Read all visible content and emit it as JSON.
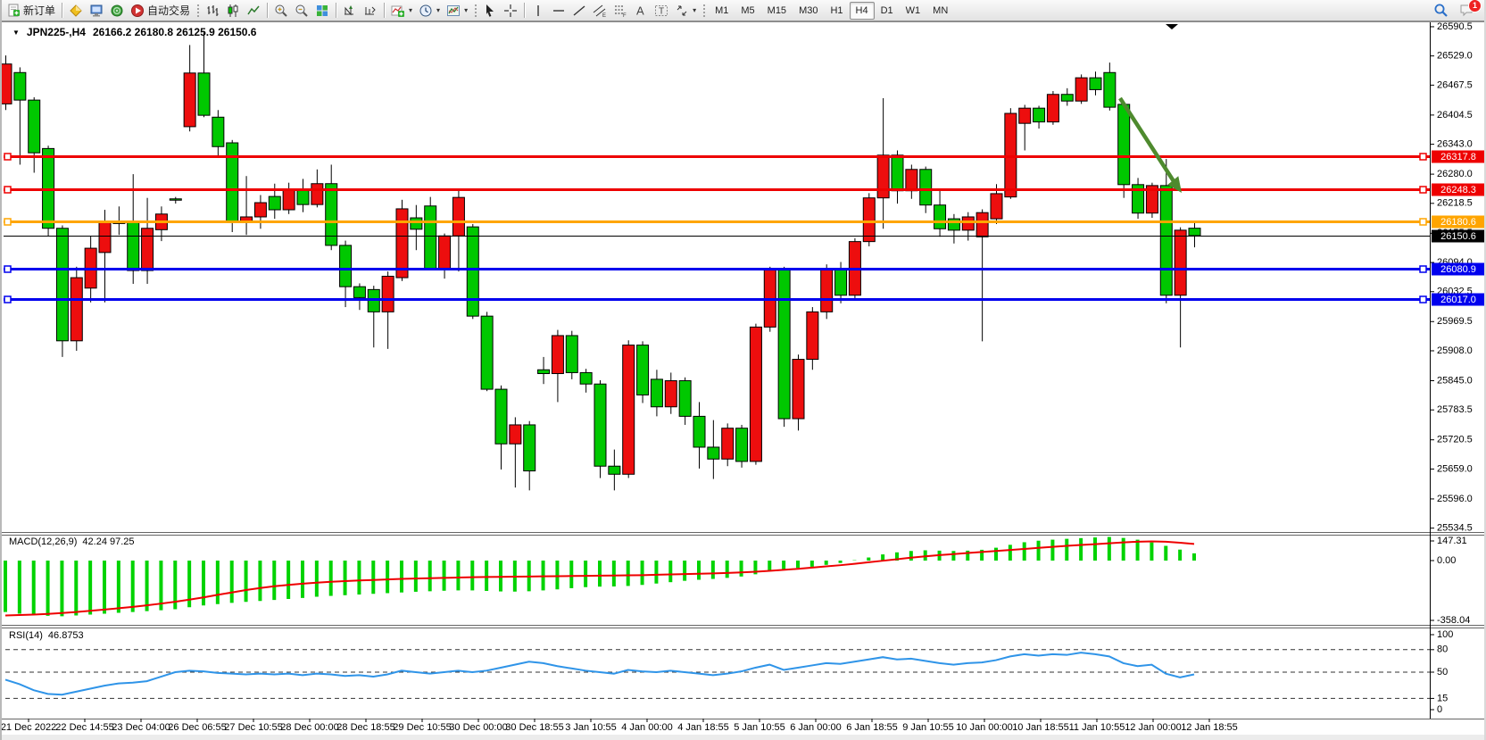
{
  "toolbar": {
    "new_order_label": "新订单",
    "autotrade_label": "自动交易",
    "timeframes": [
      "M1",
      "M5",
      "M15",
      "M30",
      "H1",
      "H4",
      "D1",
      "W1",
      "MN"
    ],
    "active_timeframe": "H4",
    "notification_count": "1",
    "icon_names": [
      "new-order",
      "market-watch",
      "data-window",
      "navigator",
      "autotrading",
      "bar-chart",
      "candlestick-chart",
      "line-chart",
      "zoom-in",
      "zoom-out",
      "tile-windows",
      "arrange-charts",
      "shift-end",
      "indicators",
      "periods",
      "templates",
      "cursor",
      "crosshair",
      "vertical-line",
      "horizontal-line",
      "trendline",
      "equidistant-channel",
      "fibonacci",
      "text",
      "text-label",
      "arrow-objects",
      "search",
      "chat"
    ]
  },
  "chart": {
    "title": "JPN225-,H4",
    "ohlc_text": "26166.2 26180.8 26125.9 26150.6",
    "price_axis": [
      26590.5,
      26529.0,
      26467.5,
      26404.5,
      26343.0,
      26280.0,
      26218.5,
      26155.5,
      26094.0,
      26032.5,
      25969.5,
      25908.0,
      25845.0,
      25783.5,
      25720.5,
      25659.0,
      25596.0,
      25534.5
    ],
    "lines": [
      {
        "price": 26317.8,
        "color": "#ee0000",
        "label": "26317.8",
        "width": 3
      },
      {
        "price": 26248.3,
        "color": "#ee0000",
        "label": "26248.3",
        "width": 3
      },
      {
        "price": 26180.6,
        "color": "#ffa500",
        "label": "26180.6",
        "width": 3
      },
      {
        "price": 26150.6,
        "color": "#000000",
        "label": "26150.6",
        "width": 1
      },
      {
        "price": 26080.9,
        "color": "#0000ee",
        "label": "26080.9",
        "width": 3
      },
      {
        "price": 26017.0,
        "color": "#0000ee",
        "label": "26017.0",
        "width": 3
      }
    ],
    "time_labels": [
      "21 Dec 2022",
      "22 Dec 14:55",
      "23 Dec 04:00",
      "26 Dec 06:55",
      "27 Dec 10:55",
      "28 Dec 00:00",
      "28 Dec 18:55",
      "29 Dec 10:55",
      "30 Dec 00:00",
      "30 Dec 18:55",
      "3 Jan 10:55",
      "4 Jan 00:00",
      "4 Jan 18:55",
      "5 Jan 10:55",
      "6 Jan 00:00",
      "6 Jan 18:55",
      "9 Jan 10:55",
      "10 Jan 00:00",
      "10 Jan 18:55",
      "11 Jan 10:55",
      "12 Jan 00:00",
      "12 Jan 18:55"
    ]
  },
  "macd": {
    "label": "MACD(12,26,9)",
    "values": "42.24 97.25",
    "axis": [
      "147.31",
      "0.00",
      "-358.04"
    ],
    "axis_values": [
      147.31,
      0.0,
      -358.04
    ]
  },
  "rsi": {
    "label": "RSI(14)",
    "value": "46.8753",
    "axis_values": [
      100,
      80,
      50,
      15,
      0
    ],
    "dashed_levels": [
      80,
      50,
      15
    ]
  },
  "annotation": {
    "arrow_color": "#4e8a2e"
  },
  "chart_data": {
    "type": "candlestick",
    "symbol": "JPN225-",
    "timeframe": "H4",
    "up_color": "#ed0e0e",
    "down_color": "#00c800",
    "last_ohlc": {
      "open": 26166.2,
      "high": 26180.8,
      "low": 26125.9,
      "close": 26150.6
    },
    "candles": [
      [
        26428,
        26530,
        26415,
        26512
      ],
      [
        26494,
        26505,
        26300,
        26436
      ],
      [
        26436,
        26442,
        26283,
        26325
      ],
      [
        26334,
        26340,
        26150,
        26166
      ],
      [
        26166,
        26172,
        25895,
        25929
      ],
      [
        25929,
        26085,
        25908,
        26062
      ],
      [
        26040,
        26150,
        26010,
        26124
      ],
      [
        26115,
        26205,
        26010,
        26181
      ],
      [
        26176,
        26212,
        26152,
        26180
      ],
      [
        26180,
        26280,
        26049,
        26077
      ],
      [
        26077,
        26230,
        26049,
        26166
      ],
      [
        26163,
        26212,
        26139,
        26196
      ],
      [
        26228,
        26232,
        26218,
        26226
      ],
      [
        26380,
        26552,
        26370,
        26493
      ],
      [
        26493,
        26581,
        26400,
        26404
      ],
      [
        26400,
        26415,
        26318,
        26338
      ],
      [
        26346,
        26352,
        26158,
        26181
      ],
      [
        26181,
        26276,
        26152,
        26190
      ],
      [
        26190,
        26236,
        26165,
        26220
      ],
      [
        26233,
        26260,
        26186,
        26205
      ],
      [
        26205,
        26262,
        26196,
        26247
      ],
      [
        26247,
        26270,
        26200,
        26216
      ],
      [
        26216,
        26290,
        26210,
        26260
      ],
      [
        26260,
        26300,
        26120,
        26130
      ],
      [
        26130,
        26140,
        26000,
        26043
      ],
      [
        26043,
        26050,
        25994,
        26020
      ],
      [
        26037,
        26045,
        25915,
        25990
      ],
      [
        25990,
        26075,
        25912,
        26065
      ],
      [
        26062,
        26226,
        26055,
        26207
      ],
      [
        26188,
        26215,
        26120,
        26164
      ],
      [
        26213,
        26232,
        26078,
        26081
      ],
      [
        26081,
        26155,
        26060,
        26150
      ],
      [
        26150,
        26248,
        26075,
        26231
      ],
      [
        26169,
        26175,
        25975,
        25981
      ],
      [
        25981,
        25990,
        25823,
        25827
      ],
      [
        25827,
        25835,
        25658,
        25712
      ],
      [
        25712,
        25768,
        25620,
        25752
      ],
      [
        25752,
        25760,
        25614,
        25655
      ],
      [
        25868,
        25895,
        25838,
        25860
      ],
      [
        25860,
        25952,
        25800,
        25940
      ],
      [
        25940,
        25950,
        25848,
        25862
      ],
      [
        25862,
        25870,
        25820,
        25838
      ],
      [
        25838,
        25846,
        25640,
        25665
      ],
      [
        25665,
        25700,
        25614,
        25648
      ],
      [
        25648,
        25930,
        25640,
        25920
      ],
      [
        25920,
        25928,
        25798,
        25815
      ],
      [
        25848,
        25868,
        25770,
        25790
      ],
      [
        25790,
        25862,
        25775,
        25845
      ],
      [
        25845,
        25852,
        25752,
        25770
      ],
      [
        25770,
        25800,
        25660,
        25705
      ],
      [
        25705,
        25762,
        25638,
        25680
      ],
      [
        25680,
        25755,
        25665,
        25745
      ],
      [
        25745,
        25752,
        25662,
        25675
      ],
      [
        25675,
        25965,
        25668,
        25958
      ],
      [
        25958,
        26085,
        25948,
        26078
      ],
      [
        26078,
        26085,
        25748,
        25765
      ],
      [
        25765,
        25900,
        25740,
        25890
      ],
      [
        25890,
        26000,
        25868,
        25990
      ],
      [
        25990,
        26090,
        25975,
        26080
      ],
      [
        26080,
        26095,
        26008,
        26025
      ],
      [
        26025,
        26145,
        26015,
        26138
      ],
      [
        26138,
        26240,
        26128,
        26230
      ],
      [
        26230,
        26440,
        26165,
        26320
      ],
      [
        26320,
        26330,
        26218,
        26245
      ],
      [
        26245,
        26300,
        26228,
        26290
      ],
      [
        26290,
        26296,
        26198,
        26215
      ],
      [
        26215,
        26246,
        26148,
        26165
      ],
      [
        26186,
        26196,
        26134,
        26162
      ],
      [
        26162,
        26200,
        26140,
        26190
      ],
      [
        26148,
        26206,
        25928,
        26199
      ],
      [
        26186,
        26259,
        26175,
        26239
      ],
      [
        26232,
        26419,
        26228,
        26408
      ],
      [
        26387,
        26426,
        26330,
        26419
      ],
      [
        26419,
        26424,
        26376,
        26390
      ],
      [
        26390,
        26455,
        26384,
        26448
      ],
      [
        26448,
        26461,
        26424,
        26434
      ],
      [
        26434,
        26490,
        26428,
        26483
      ],
      [
        26483,
        26496,
        26446,
        26458
      ],
      [
        26494,
        26515,
        26414,
        26421
      ],
      [
        26427,
        26433,
        26230,
        26258
      ],
      [
        26258,
        26272,
        26186,
        26198
      ],
      [
        26198,
        26262,
        26188,
        26256
      ],
      [
        26256,
        26312,
        26008,
        26025
      ],
      [
        26025,
        26168,
        25915,
        26162
      ],
      [
        26166.2,
        26180.8,
        26125.9,
        26150.6
      ]
    ],
    "macd_histogram": [
      -300,
      -310,
      -318,
      -322,
      -325,
      -320,
      -315,
      -310,
      -305,
      -300,
      -295,
      -290,
      -284,
      -272,
      -262,
      -254,
      -247,
      -241,
      -236,
      -230,
      -224,
      -218,
      -211,
      -206,
      -202,
      -198,
      -194,
      -190,
      -186,
      -182,
      -179,
      -176,
      -174,
      -174,
      -177,
      -180,
      -181,
      -179,
      -174,
      -168,
      -161,
      -155,
      -152,
      -151,
      -148,
      -142,
      -134,
      -126,
      -118,
      -112,
      -107,
      -101,
      -93,
      -80,
      -62,
      -50,
      -43,
      -36,
      -25,
      -14,
      2,
      18,
      36,
      48,
      56,
      60,
      58,
      56,
      58,
      63,
      75,
      92,
      107,
      116,
      122,
      127,
      131,
      135,
      138,
      132,
      122,
      106,
      86,
      64,
      42.24
    ],
    "macd_signal": [
      -320,
      -318,
      -315,
      -311,
      -306,
      -300,
      -293,
      -286,
      -278,
      -270,
      -261,
      -251,
      -240,
      -228,
      -215,
      -200,
      -186,
      -172,
      -160,
      -150,
      -142,
      -135,
      -129,
      -124,
      -120,
      -116,
      -113,
      -110,
      -107,
      -105,
      -103,
      -101,
      -99,
      -97,
      -96,
      -95,
      -94,
      -93,
      -92,
      -91,
      -90,
      -89,
      -88,
      -87,
      -86,
      -85,
      -83,
      -81,
      -79,
      -77,
      -75,
      -72,
      -69,
      -65,
      -60,
      -54,
      -48,
      -41,
      -34,
      -27,
      -19,
      -10,
      -1,
      8,
      17,
      25,
      32,
      38,
      44,
      50,
      56,
      62,
      68,
      74,
      80,
      86,
      91,
      96,
      101,
      106,
      110,
      112,
      110,
      104,
      97.25
    ],
    "rsi": [
      40,
      34,
      26,
      21,
      20,
      24,
      28,
      32,
      35,
      36,
      38,
      44,
      50,
      52,
      51,
      49,
      48,
      47,
      48,
      47,
      48,
      46,
      48,
      47,
      45,
      46,
      44,
      47,
      52,
      50,
      48,
      50,
      52,
      50,
      52,
      56,
      60,
      64,
      62,
      58,
      55,
      52,
      50,
      48,
      53,
      51,
      50,
      52,
      50,
      48,
      46,
      48,
      51,
      56,
      60,
      53,
      56,
      59,
      62,
      61,
      64,
      67,
      70,
      67,
      68,
      65,
      62,
      60,
      62,
      63,
      66,
      71,
      74,
      72,
      74,
      73,
      76,
      74,
      71,
      62,
      58,
      60,
      48,
      43,
      47
    ]
  }
}
